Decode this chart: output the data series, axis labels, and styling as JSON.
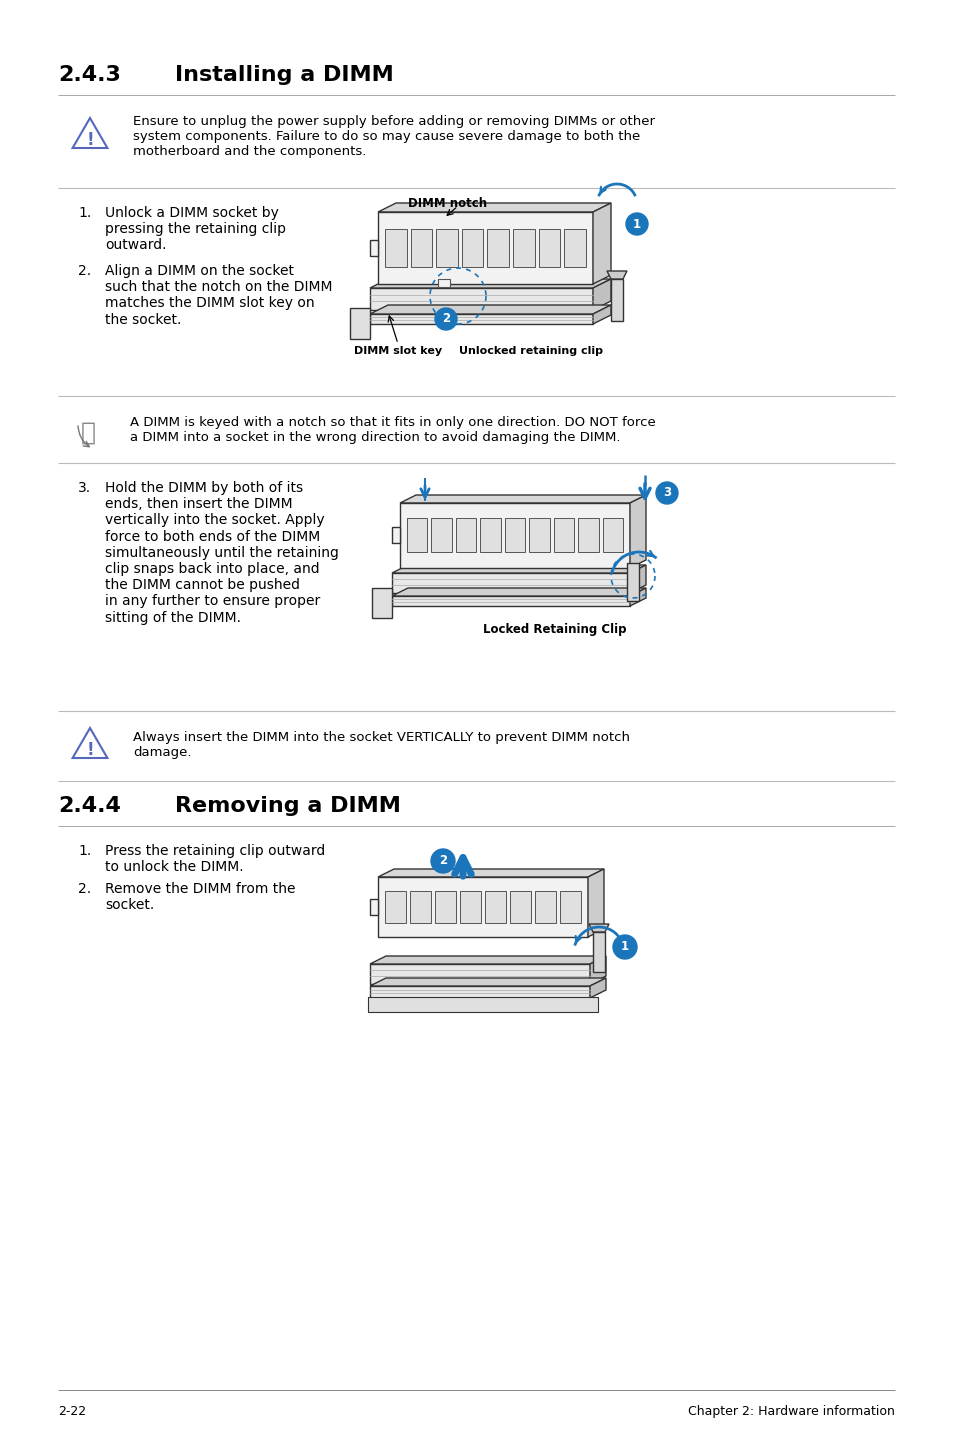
{
  "bg_color": "#ffffff",
  "footer_left": "2-22",
  "footer_right": "Chapter 2: Hardware information",
  "section_243_title": "2.4.3",
  "section_243_heading": "Installing a DIMM",
  "section_244_title": "2.4.4",
  "section_244_heading": "Removing a DIMM",
  "warning_text_1": "Ensure to unplug the power supply before adding or removing DIMMs or other\nsystem components. Failure to do so may cause severe damage to both the\nmotherboard and the components.",
  "note_text_1": "A DIMM is keyed with a notch so that it fits in only one direction. DO NOT force\na DIMM into a socket in the wrong direction to avoid damaging the DIMM.",
  "warning_text_2": "Always insert the DIMM into the socket VERTICALLY to prevent DIMM notch\ndamage.",
  "step1_text": "Unlock a DIMM socket by\npressing the retaining clip\noutward.",
  "step2_text": "Align a DIMM on the socket\nsuch that the notch on the DIMM\nmatches the DIMM slot key on\nthe socket.",
  "step3_text": "Hold the DIMM by both of its\nends, then insert the DIMM\nvertically into the socket. Apply\nforce to both ends of the DIMM\nsimultaneously until the retaining\nclip snaps back into place, and\nthe DIMM cannot be pushed\nin any further to ensure proper\nsitting of the DIMM.",
  "remove_step1_text": "Press the retaining clip outward\nto unlock the DIMM.",
  "remove_step2_text": "Remove the DIMM from the\nsocket.",
  "accent_color": "#1a75bb",
  "text_color": "#000000",
  "warn_icon_color": "#5566bb"
}
